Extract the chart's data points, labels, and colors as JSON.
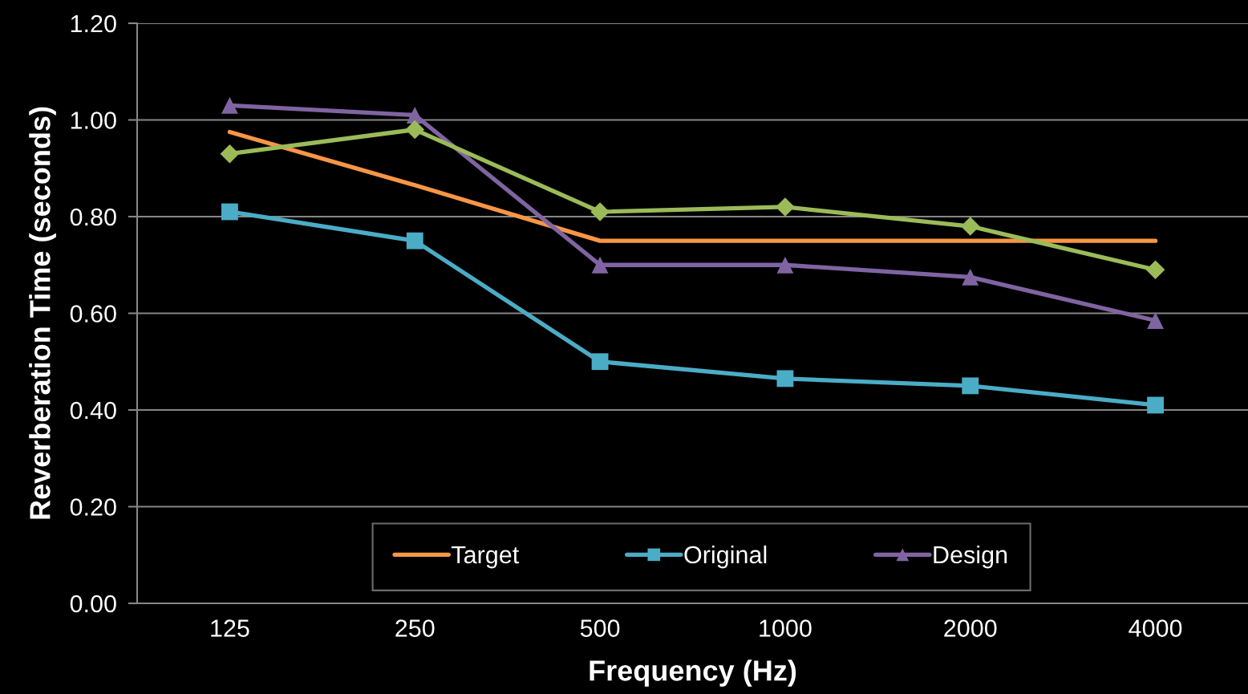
{
  "chart_data": {
    "type": "line",
    "xlabel": "Frequency (Hz)",
    "ylabel": "Reverberation Time (seconds)",
    "categories": [
      "125",
      "250",
      "500",
      "1000",
      "2000",
      "4000"
    ],
    "ylim": [
      0,
      1.2
    ],
    "yticks": [
      {
        "value": 0,
        "label": "0.00"
      },
      {
        "value": 0.2,
        "label": "0.20"
      },
      {
        "value": 0.4,
        "label": "0.40"
      },
      {
        "value": 0.6,
        "label": "0.60"
      },
      {
        "value": 0.8,
        "label": "0.80"
      },
      {
        "value": 1.0,
        "label": "1.00"
      },
      {
        "value": 1.2,
        "label": "1.20"
      }
    ],
    "grid": "y",
    "legend": "bottom",
    "line_style": "solid",
    "series": [
      {
        "name": "Target",
        "color": "#f79646",
        "marker": "none",
        "values": [
          0.975,
          0.865,
          0.75,
          0.75,
          0.75,
          0.75
        ]
      },
      {
        "name": "Original",
        "color": "#4bacc6",
        "marker": "square",
        "values": [
          0.81,
          0.75,
          0.5,
          0.465,
          0.45,
          0.41
        ]
      },
      {
        "name": "Design",
        "color": "#8064a2",
        "marker": "triangle",
        "values": [
          1.03,
          1.01,
          0.7,
          0.7,
          0.675,
          0.585
        ]
      },
      {
        "color": "#9bbb59",
        "marker": "diamond",
        "values": [
          0.93,
          0.98,
          0.81,
          0.82,
          0.78,
          0.69
        ]
      }
    ]
  }
}
